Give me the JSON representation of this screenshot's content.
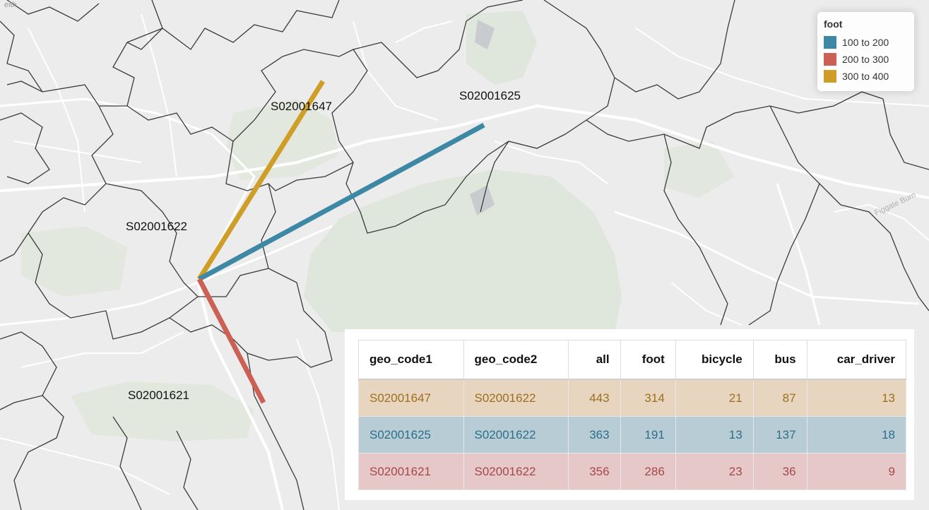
{
  "legend": {
    "title": "foot",
    "items": [
      {
        "label": "100 to 200",
        "color": "#3d88a5"
      },
      {
        "label": "200 to 300",
        "color": "#cd6054"
      },
      {
        "label": "300 to 400",
        "color": "#cf9e27"
      }
    ]
  },
  "zones": {
    "z1647": "S02001647",
    "z1625": "S02001625",
    "z1622": "S02001622",
    "z1621": "S02001621"
  },
  "basemap_text": {
    "stream": "Figgate Burn",
    "corner": "eith"
  },
  "flows": [
    {
      "from": "S02001647",
      "to": "S02001622",
      "foot": 314,
      "color": "#cf9e27"
    },
    {
      "from": "S02001625",
      "to": "S02001622",
      "foot": 191,
      "color": "#3d88a5"
    },
    {
      "from": "S02001621",
      "to": "S02001622",
      "foot": 286,
      "color": "#cd6054"
    }
  ],
  "table": {
    "headers": [
      "geo_code1",
      "geo_code2",
      "all",
      "foot",
      "bicycle",
      "bus",
      "car_driver"
    ],
    "rows": [
      [
        "S02001647",
        "S02001622",
        "443",
        "314",
        "21",
        "87",
        "13"
      ],
      [
        "S02001625",
        "S02001622",
        "363",
        "191",
        "13",
        "137",
        "18"
      ],
      [
        "S02001621",
        "S02001622",
        "356",
        "286",
        "23",
        "36",
        "9"
      ]
    ]
  },
  "colors": {
    "basemap": "#ececec",
    "park": "#dfe6dc",
    "boundary": "#3a3a3a"
  }
}
